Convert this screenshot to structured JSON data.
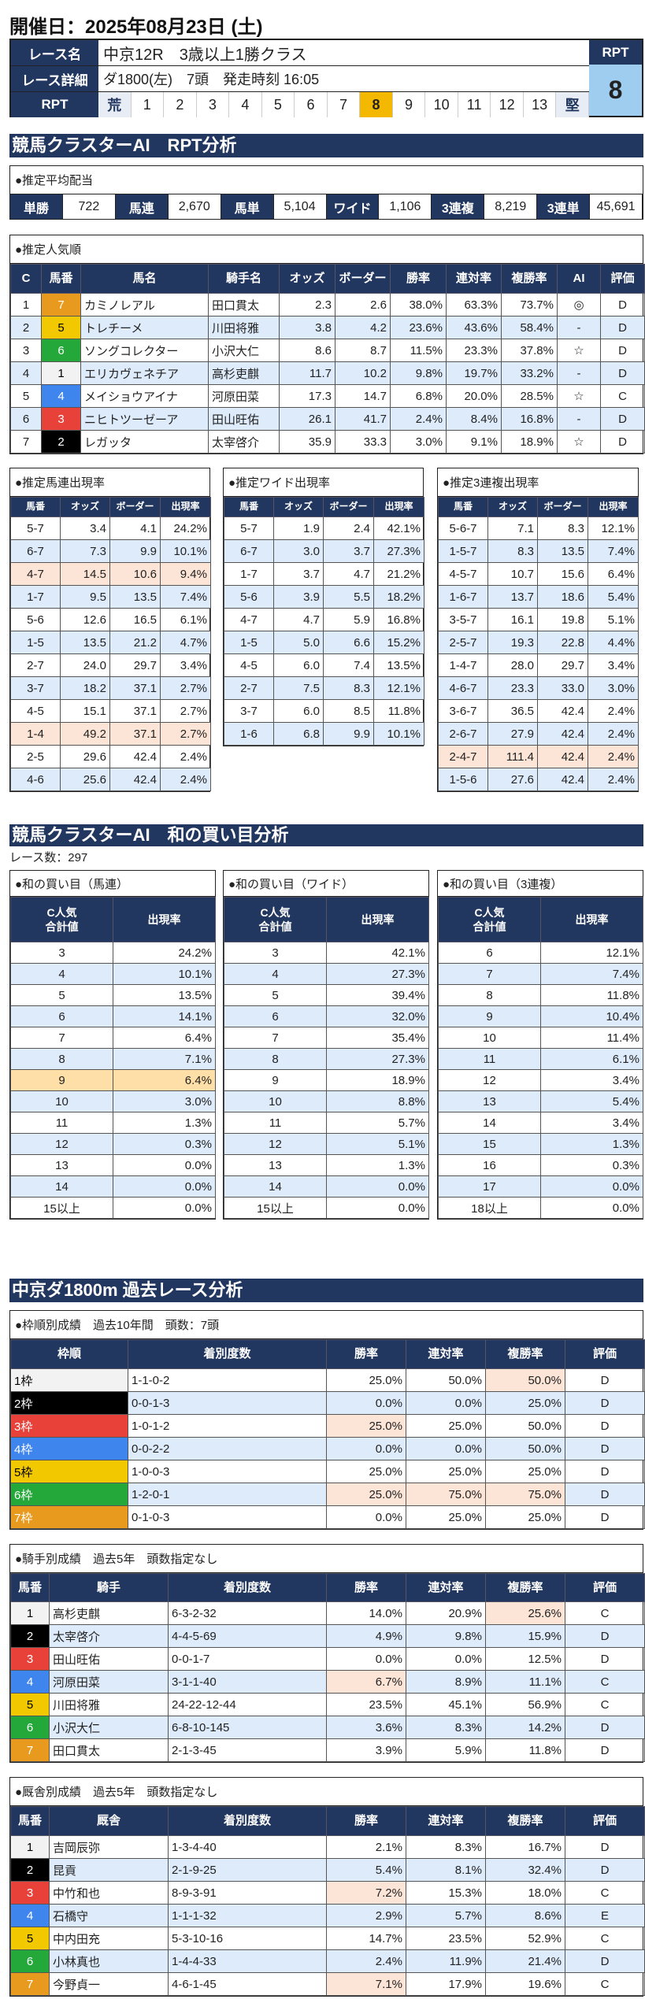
{
  "title": "開催日：2025年08月23日 (土)",
  "header": {
    "race_name_label": "レース名",
    "race_name": "中京12R　3歳以上1勝クラス",
    "detail_label": "レース詳細",
    "detail": "ダ1800(左)　7頭　発走時刻 16:05",
    "rpt_label": "RPT",
    "rpt_scale": [
      "荒",
      "1",
      "2",
      "3",
      "4",
      "5",
      "6",
      "7",
      "8",
      "9",
      "10",
      "11",
      "12",
      "13",
      "堅"
    ],
    "rpt_selected": "8",
    "rpt_head": "RPT",
    "rpt_value": "8"
  },
  "frame_colors": {
    "1": {
      "bg": "#f2f2f2",
      "fg": "#000000"
    },
    "2": {
      "bg": "#000000",
      "fg": "#ffffff"
    },
    "3": {
      "bg": "#e8413a",
      "fg": "#ffffff"
    },
    "4": {
      "bg": "#3f85ee",
      "fg": "#ffffff"
    },
    "5": {
      "bg": "#f2c800",
      "fg": "#000000"
    },
    "6": {
      "bg": "#24a83a",
      "fg": "#ffffff"
    },
    "7": {
      "bg": "#e89a1e",
      "fg": "#ffffff"
    }
  },
  "rpt_section": {
    "banner": "競馬クラスターAI　RPT分析",
    "payout": {
      "title": "●推定平均配当",
      "items": [
        {
          "label": "単勝",
          "value": "722"
        },
        {
          "label": "馬連",
          "value": "2,670"
        },
        {
          "label": "馬単",
          "value": "5,104"
        },
        {
          "label": "ワイド",
          "value": "1,106"
        },
        {
          "label": "3連複",
          "value": "8,219"
        },
        {
          "label": "3連単",
          "value": "45,691"
        }
      ]
    },
    "popularity": {
      "title": "●推定人気順",
      "headers": [
        "C",
        "馬番",
        "馬名",
        "騎手名",
        "オッズ",
        "ボーダー",
        "勝率",
        "連対率",
        "複勝率",
        "AI",
        "評価"
      ],
      "rows": [
        {
          "cells": [
            "1",
            "7",
            "カミノレアル",
            "田口貫太",
            "2.3",
            "2.6",
            "38.0%",
            "63.3%",
            "73.7%",
            "◎",
            "D"
          ]
        },
        {
          "cells": [
            "2",
            "5",
            "トレチーメ",
            "川田将雅",
            "3.8",
            "4.2",
            "23.6%",
            "43.6%",
            "58.4%",
            "-",
            "D"
          ]
        },
        {
          "cells": [
            "3",
            "6",
            "ソングコレクター",
            "小沢大仁",
            "8.6",
            "8.7",
            "11.5%",
            "23.3%",
            "37.8%",
            "☆",
            "D"
          ]
        },
        {
          "cells": [
            "4",
            "1",
            "エリカヴェネチア",
            "高杉吏麒",
            "11.7",
            "10.2",
            "9.8%",
            "19.7%",
            "33.2%",
            "-",
            "D"
          ]
        },
        {
          "cells": [
            "5",
            "4",
            "メイショウアイナ",
            "河原田菜",
            "17.3",
            "14.7",
            "6.8%",
            "20.0%",
            "28.5%",
            "☆",
            "C"
          ]
        },
        {
          "cells": [
            "6",
            "3",
            "ニヒトツーゼーア",
            "田山旺佑",
            "26.1",
            "41.7",
            "2.4%",
            "8.4%",
            "16.8%",
            "-",
            "D"
          ]
        },
        {
          "cells": [
            "7",
            "2",
            "レガッタ",
            "太宰啓介",
            "35.9",
            "33.3",
            "3.0%",
            "9.1%",
            "18.9%",
            "☆",
            "D"
          ]
        }
      ]
    },
    "umaren": {
      "title": "●推定馬連出現率",
      "headers": [
        "馬番",
        "オッズ",
        "ボーダー",
        "出現率"
      ],
      "rows": [
        {
          "cells": [
            "5-7",
            "3.4",
            "4.1",
            "24.2%"
          ]
        },
        {
          "cells": [
            "6-7",
            "7.3",
            "9.9",
            "10.1%"
          ]
        },
        {
          "cells": [
            "4-7",
            "14.5",
            "10.6",
            "9.4%"
          ],
          "hl": "peach"
        },
        {
          "cells": [
            "1-7",
            "9.5",
            "13.5",
            "7.4%"
          ]
        },
        {
          "cells": [
            "5-6",
            "12.6",
            "16.5",
            "6.1%"
          ]
        },
        {
          "cells": [
            "1-5",
            "13.5",
            "21.2",
            "4.7%"
          ]
        },
        {
          "cells": [
            "2-7",
            "24.0",
            "29.7",
            "3.4%"
          ]
        },
        {
          "cells": [
            "3-7",
            "18.2",
            "37.1",
            "2.7%"
          ]
        },
        {
          "cells": [
            "4-5",
            "15.1",
            "37.1",
            "2.7%"
          ]
        },
        {
          "cells": [
            "1-4",
            "49.2",
            "37.1",
            "2.7%"
          ],
          "hl": "peach"
        },
        {
          "cells": [
            "2-5",
            "29.6",
            "42.4",
            "2.4%"
          ]
        },
        {
          "cells": [
            "4-6",
            "25.6",
            "42.4",
            "2.4%"
          ]
        }
      ]
    },
    "wide": {
      "title": "●推定ワイド出現率",
      "headers": [
        "馬番",
        "オッズ",
        "ボーダー",
        "出現率"
      ],
      "rows": [
        {
          "cells": [
            "5-7",
            "1.9",
            "2.4",
            "42.1%"
          ]
        },
        {
          "cells": [
            "6-7",
            "3.0",
            "3.7",
            "27.3%"
          ]
        },
        {
          "cells": [
            "1-7",
            "3.7",
            "4.7",
            "21.2%"
          ]
        },
        {
          "cells": [
            "5-6",
            "3.9",
            "5.5",
            "18.2%"
          ]
        },
        {
          "cells": [
            "4-7",
            "4.7",
            "5.9",
            "16.8%"
          ]
        },
        {
          "cells": [
            "1-5",
            "5.0",
            "6.6",
            "15.2%"
          ]
        },
        {
          "cells": [
            "4-5",
            "6.0",
            "7.4",
            "13.5%"
          ]
        },
        {
          "cells": [
            "2-7",
            "7.5",
            "8.3",
            "12.1%"
          ]
        },
        {
          "cells": [
            "3-7",
            "6.0",
            "8.5",
            "11.8%"
          ]
        },
        {
          "cells": [
            "1-6",
            "6.8",
            "9.9",
            "10.1%"
          ]
        }
      ]
    },
    "trio": {
      "title": "●推定3連複出現率",
      "headers": [
        "馬番",
        "オッズ",
        "ボーダー",
        "出現率"
      ],
      "rows": [
        {
          "cells": [
            "5-6-7",
            "7.1",
            "8.3",
            "12.1%"
          ]
        },
        {
          "cells": [
            "1-5-7",
            "8.3",
            "13.5",
            "7.4%"
          ]
        },
        {
          "cells": [
            "4-5-7",
            "10.7",
            "15.6",
            "6.4%"
          ]
        },
        {
          "cells": [
            "1-6-7",
            "13.7",
            "18.6",
            "5.4%"
          ]
        },
        {
          "cells": [
            "3-5-7",
            "16.1",
            "19.8",
            "5.1%"
          ]
        },
        {
          "cells": [
            "2-5-7",
            "19.3",
            "22.8",
            "4.4%"
          ]
        },
        {
          "cells": [
            "1-4-7",
            "28.0",
            "29.7",
            "3.4%"
          ]
        },
        {
          "cells": [
            "4-6-7",
            "23.3",
            "33.0",
            "3.0%"
          ]
        },
        {
          "cells": [
            "3-6-7",
            "36.5",
            "42.4",
            "2.4%"
          ]
        },
        {
          "cells": [
            "2-6-7",
            "27.9",
            "42.4",
            "2.4%"
          ]
        },
        {
          "cells": [
            "2-4-7",
            "111.4",
            "42.4",
            "2.4%"
          ],
          "hl": "peach"
        },
        {
          "cells": [
            "1-5-6",
            "27.6",
            "42.4",
            "2.4%"
          ]
        }
      ]
    }
  },
  "sum_section": {
    "banner": "競馬クラスターAI　和の買い目分析",
    "race_count": "レース数：297",
    "umaren": {
      "title": "●和の買い目（馬連）",
      "headers": [
        "C人気\n合計値",
        "出現率"
      ],
      "rows": [
        {
          "cells": [
            "3",
            "24.2%"
          ]
        },
        {
          "cells": [
            "4",
            "10.1%"
          ]
        },
        {
          "cells": [
            "5",
            "13.5%"
          ]
        },
        {
          "cells": [
            "6",
            "14.1%"
          ],
          "hl": "orange"
        },
        {
          "cells": [
            "7",
            "6.4%"
          ]
        },
        {
          "cells": [
            "8",
            "7.1%"
          ]
        },
        {
          "cells": [
            "9",
            "6.4%"
          ],
          "hl": "lorange"
        },
        {
          "cells": [
            "10",
            "3.0%"
          ]
        },
        {
          "cells": [
            "11",
            "1.3%"
          ]
        },
        {
          "cells": [
            "12",
            "0.3%"
          ]
        },
        {
          "cells": [
            "13",
            "0.0%"
          ]
        },
        {
          "cells": [
            "14",
            "0.0%"
          ]
        },
        {
          "cells": [
            "15以上",
            "0.0%"
          ]
        }
      ]
    },
    "wide": {
      "title": "●和の買い目（ワイド）",
      "headers": [
        "C人気\n合計値",
        "出現率"
      ],
      "rows": [
        {
          "cells": [
            "3",
            "42.1%"
          ]
        },
        {
          "cells": [
            "4",
            "27.3%"
          ]
        },
        {
          "cells": [
            "5",
            "39.4%"
          ]
        },
        {
          "cells": [
            "6",
            "32.0%"
          ]
        },
        {
          "cells": [
            "7",
            "35.4%"
          ]
        },
        {
          "cells": [
            "8",
            "27.3%"
          ]
        },
        {
          "cells": [
            "9",
            "18.9%"
          ]
        },
        {
          "cells": [
            "10",
            "8.8%"
          ]
        },
        {
          "cells": [
            "11",
            "5.7%"
          ]
        },
        {
          "cells": [
            "12",
            "5.1%"
          ],
          "hl": "borange"
        },
        {
          "cells": [
            "13",
            "1.3%"
          ]
        },
        {
          "cells": [
            "14",
            "0.0%"
          ]
        },
        {
          "cells": [
            "15以上",
            "0.0%"
          ]
        }
      ]
    },
    "trio": {
      "title": "●和の買い目（3連複）",
      "headers": [
        "C人気\n合計値",
        "出現率"
      ],
      "rows": [
        {
          "cells": [
            "6",
            "12.1%"
          ]
        },
        {
          "cells": [
            "7",
            "7.4%"
          ]
        },
        {
          "cells": [
            "8",
            "11.8%"
          ]
        },
        {
          "cells": [
            "9",
            "10.4%"
          ]
        },
        {
          "cells": [
            "10",
            "11.4%"
          ]
        },
        {
          "cells": [
            "11",
            "6.1%"
          ]
        },
        {
          "cells": [
            "12",
            "3.4%"
          ]
        },
        {
          "cells": [
            "13",
            "5.4%"
          ],
          "hl": "borange"
        },
        {
          "cells": [
            "14",
            "3.4%"
          ]
        },
        {
          "cells": [
            "15",
            "1.3%"
          ],
          "hl": "borange"
        },
        {
          "cells": [
            "16",
            "0.3%"
          ]
        },
        {
          "cells": [
            "17",
            "0.0%"
          ]
        },
        {
          "cells": [
            "18以上",
            "0.0%"
          ]
        }
      ]
    }
  },
  "past_section": {
    "banner": "中京ダ1800m 過去レース分析",
    "gate": {
      "title": "●枠順別成績　過去10年間　頭数：7頭",
      "headers": [
        "枠順",
        "着別度数",
        "勝率",
        "連対率",
        "複勝率",
        "評価"
      ],
      "rows": [
        {
          "frame": "1",
          "cells": [
            "1枠",
            "1-1-0-2",
            "25.0%",
            "50.0%",
            "50.0%",
            "D"
          ],
          "peach": [
            4
          ]
        },
        {
          "frame": "2",
          "cells": [
            "2枠",
            "0-0-1-3",
            "0.0%",
            "0.0%",
            "25.0%",
            "D"
          ]
        },
        {
          "frame": "3",
          "cells": [
            "3枠",
            "1-0-1-2",
            "25.0%",
            "25.0%",
            "50.0%",
            "D"
          ],
          "peach": [
            2
          ]
        },
        {
          "frame": "4",
          "cells": [
            "4枠",
            "0-0-2-2",
            "0.0%",
            "0.0%",
            "50.0%",
            "D"
          ]
        },
        {
          "frame": "5",
          "cells": [
            "5枠",
            "1-0-0-3",
            "25.0%",
            "25.0%",
            "25.0%",
            "D"
          ]
        },
        {
          "frame": "6",
          "cells": [
            "6枠",
            "1-2-0-1",
            "25.0%",
            "75.0%",
            "75.0%",
            "D"
          ],
          "peach": [
            2,
            3,
            4
          ]
        },
        {
          "frame": "7",
          "cells": [
            "7枠",
            "0-1-0-3",
            "0.0%",
            "25.0%",
            "25.0%",
            "D"
          ]
        }
      ]
    },
    "jockey": {
      "title": "●騎手別成績　過去5年　頭数指定なし",
      "headers": [
        "馬番",
        "騎手",
        "着別度数",
        "勝率",
        "連対率",
        "複勝率",
        "評価"
      ],
      "rows": [
        {
          "frame": "1",
          "cells": [
            "1",
            "高杉吏麒",
            "6-3-2-32",
            "14.0%",
            "20.9%",
            "25.6%",
            "C"
          ],
          "peach": [
            5
          ]
        },
        {
          "frame": "2",
          "cells": [
            "2",
            "太宰啓介",
            "4-4-5-69",
            "4.9%",
            "9.8%",
            "15.9%",
            "D"
          ]
        },
        {
          "frame": "3",
          "cells": [
            "3",
            "田山旺佑",
            "0-0-1-7",
            "0.0%",
            "0.0%",
            "12.5%",
            "D"
          ]
        },
        {
          "frame": "4",
          "cells": [
            "4",
            "河原田菜",
            "3-1-1-40",
            "6.7%",
            "8.9%",
            "11.1%",
            "C"
          ],
          "peach": [
            3
          ]
        },
        {
          "frame": "5",
          "cells": [
            "5",
            "川田将雅",
            "24-22-12-44",
            "23.5%",
            "45.1%",
            "56.9%",
            "C"
          ]
        },
        {
          "frame": "6",
          "cells": [
            "6",
            "小沢大仁",
            "6-8-10-145",
            "3.6%",
            "8.3%",
            "14.2%",
            "D"
          ]
        },
        {
          "frame": "7",
          "cells": [
            "7",
            "田口貫太",
            "2-1-3-45",
            "3.9%",
            "5.9%",
            "11.8%",
            "D"
          ]
        }
      ]
    },
    "trainer": {
      "title": "●厩舎別成績　過去5年　頭数指定なし",
      "headers": [
        "馬番",
        "厩舎",
        "着別度数",
        "勝率",
        "連対率",
        "複勝率",
        "評価"
      ],
      "rows": [
        {
          "frame": "1",
          "cells": [
            "1",
            "吉岡辰弥",
            "1-3-4-40",
            "2.1%",
            "8.3%",
            "16.7%",
            "D"
          ]
        },
        {
          "frame": "2",
          "cells": [
            "2",
            "昆貢",
            "2-1-9-25",
            "5.4%",
            "8.1%",
            "32.4%",
            "D"
          ]
        },
        {
          "frame": "3",
          "cells": [
            "3",
            "中竹和也",
            "8-9-3-91",
            "7.2%",
            "15.3%",
            "18.0%",
            "C"
          ],
          "peach": [
            3
          ]
        },
        {
          "frame": "4",
          "cells": [
            "4",
            "石橋守",
            "1-1-1-32",
            "2.9%",
            "5.7%",
            "8.6%",
            "E"
          ]
        },
        {
          "frame": "5",
          "cells": [
            "5",
            "中内田充",
            "5-3-10-16",
            "14.7%",
            "23.5%",
            "52.9%",
            "C"
          ]
        },
        {
          "frame": "6",
          "cells": [
            "6",
            "小林真也",
            "1-4-4-33",
            "2.4%",
            "11.9%",
            "21.4%",
            "D"
          ]
        },
        {
          "frame": "7",
          "cells": [
            "7",
            "今野貞一",
            "4-6-1-45",
            "7.1%",
            "17.9%",
            "19.6%",
            "C"
          ],
          "peach": [
            3
          ]
        }
      ]
    }
  }
}
